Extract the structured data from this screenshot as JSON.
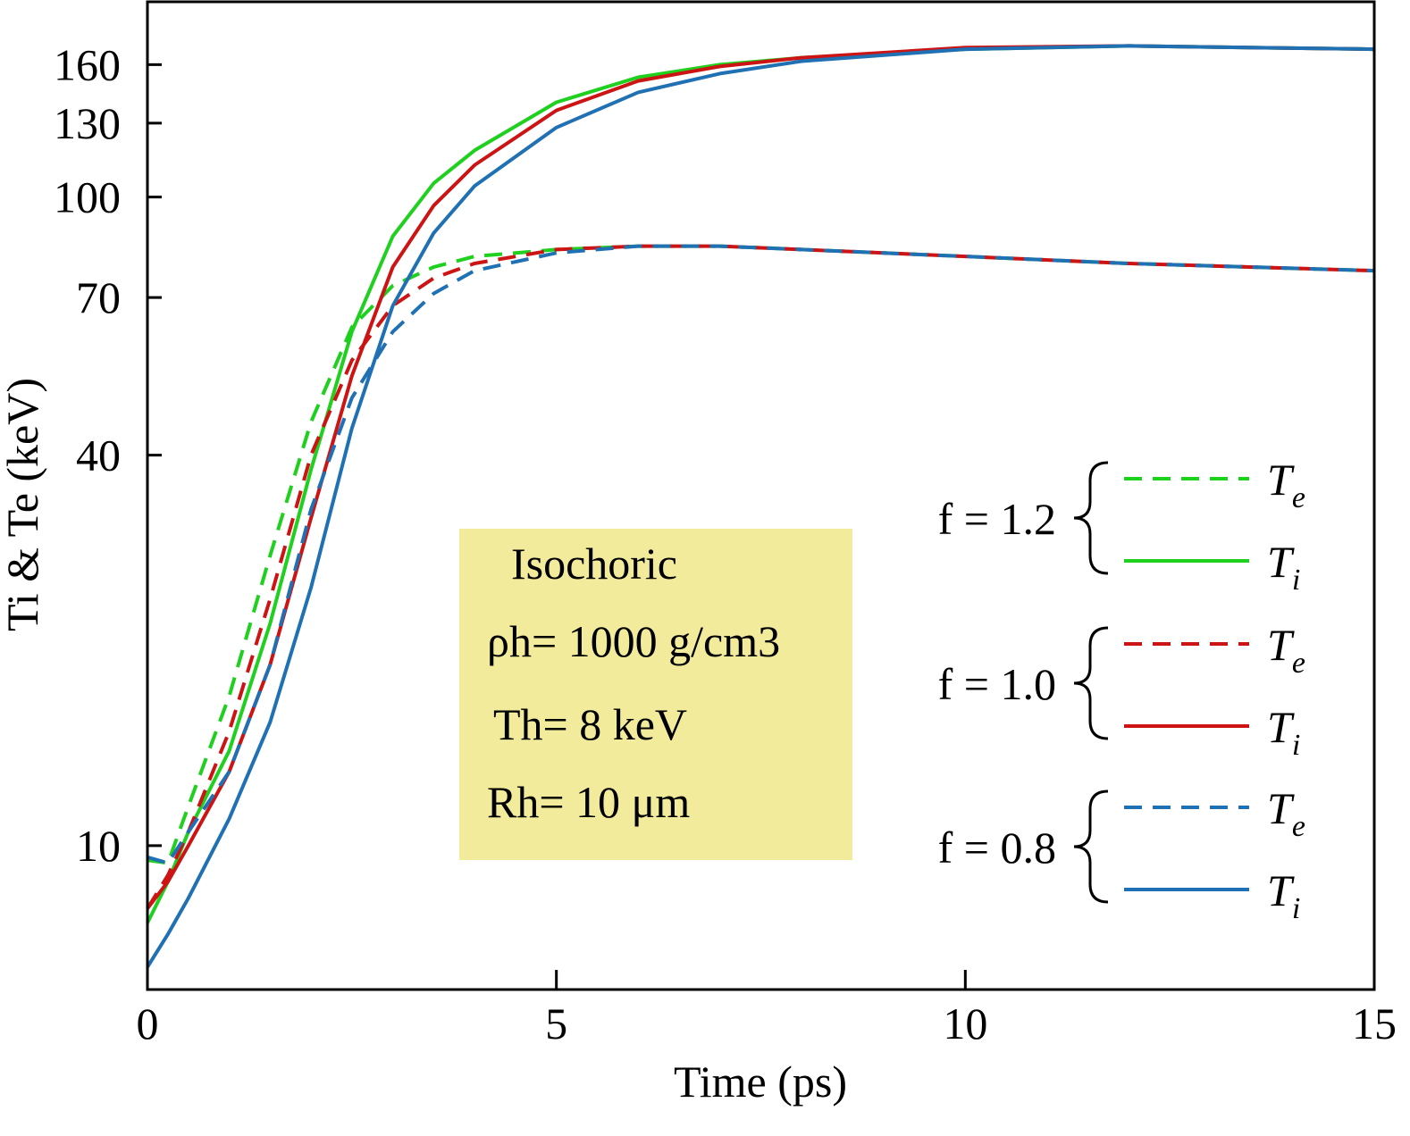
{
  "chart_data": {
    "type": "line",
    "x_label": "Time (ps)",
    "y_label": "Ti & Te (keV)",
    "x": [
      0,
      0.25,
      0.5,
      1,
      1.5,
      2,
      2.5,
      3,
      3.5,
      4,
      5,
      6,
      7,
      8,
      10,
      12,
      15
    ],
    "series": [
      {
        "name": "Te",
        "group": 0,
        "dash": true,
        "color": "#1fd01f",
        "values": [
          9.5,
          9.4,
          11.5,
          17,
          28,
          45,
          63,
          73,
          78,
          81,
          83,
          84,
          84,
          83,
          81,
          79,
          77
        ]
      },
      {
        "name": "Ti",
        "group": 0,
        "dash": false,
        "color": "#1fd01f",
        "values": [
          7.6,
          8.8,
          10.5,
          14,
          22,
          38,
          62,
          87,
          105,
          118,
          140,
          153,
          160,
          164,
          169,
          171,
          169
        ]
      },
      {
        "name": "Te",
        "group": 1,
        "dash": true,
        "color": "#cc1414",
        "values": [
          8.0,
          9.0,
          10.5,
          15,
          24,
          40,
          56,
          68,
          75,
          79,
          83,
          84,
          84,
          83,
          81,
          79,
          77
        ]
      },
      {
        "name": "Ti",
        "group": 1,
        "dash": false,
        "color": "#cc1414",
        "values": [
          8.0,
          8.8,
          10,
          13,
          19,
          32,
          53,
          78,
          97,
          112,
          136,
          151,
          159,
          164,
          170,
          171,
          169
        ]
      },
      {
        "name": "Te",
        "group": 2,
        "dash": true,
        "color": "#2070b4",
        "values": [
          9.6,
          9.4,
          10.5,
          13,
          19,
          33,
          49,
          62,
          71,
          77,
          82,
          84,
          84,
          83,
          81,
          79,
          77
        ]
      },
      {
        "name": "Ti",
        "group": 2,
        "dash": false,
        "color": "#2070b4",
        "values": [
          6.5,
          7.3,
          8.3,
          11,
          15.5,
          25,
          44,
          68,
          88,
          104,
          128,
          145,
          155,
          162,
          169,
          171,
          169
        ]
      }
    ],
    "legend_groups": [
      "f = 1.2",
      "f = 1.0",
      "f = 0.8"
    ],
    "annotation": [
      "Isochoric",
      "ρh= 1000 g/cm3",
      "Th= 8 keV",
      "Rh= 10 μm"
    ],
    "xlim": [
      0,
      15
    ],
    "xticks": [
      0,
      5,
      10,
      15
    ],
    "ylim": [
      6,
      200
    ],
    "yticks": [
      10,
      40,
      70,
      100,
      130,
      160
    ],
    "log_y": true,
    "grid": false
  }
}
